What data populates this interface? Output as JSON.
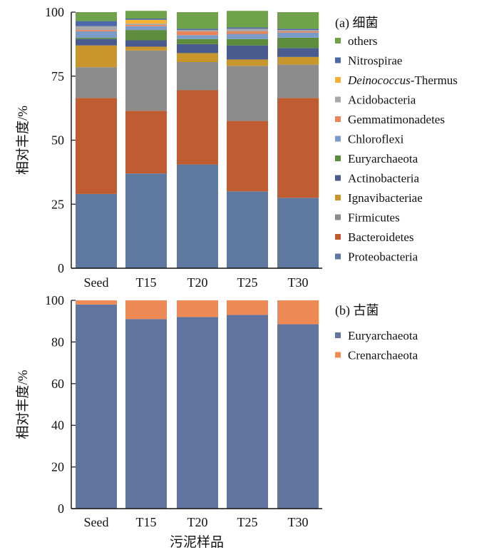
{
  "chart_data": [
    {
      "type": "stacked-bar",
      "title": "(a) 细菌",
      "xlabel": "",
      "ylabel": "相对丰度/%",
      "ylim": [
        0,
        100
      ],
      "yticks": [
        0,
        25,
        50,
        75,
        100
      ],
      "categories": [
        "Seed",
        "T15",
        "T20",
        "T25",
        "T30"
      ],
      "series": [
        {
          "name": "Proteobacteria",
          "color": "#5e789f",
          "values": [
            29.0,
            37.0,
            40.5,
            30.0,
            27.5
          ]
        },
        {
          "name": "Bacteroidetes",
          "color": "#bf5c31",
          "values": [
            37.5,
            24.5,
            29.0,
            27.5,
            39.0
          ]
        },
        {
          "name": "Firmicutes",
          "color": "#8c8c8c",
          "values": [
            12.0,
            23.5,
            11.0,
            21.5,
            13.0
          ]
        },
        {
          "name": "Ignavibacteriae",
          "color": "#c9962e",
          "values": [
            8.5,
            1.5,
            3.5,
            2.5,
            3.0
          ]
        },
        {
          "name": "Actinobacteria",
          "color": "#4a5b8f",
          "values": [
            2.5,
            2.5,
            3.5,
            5.5,
            3.5
          ]
        },
        {
          "name": "Euryarchaeota",
          "color": "#5d8c3d",
          "values": [
            0.5,
            4.0,
            2.0,
            2.5,
            4.0
          ]
        },
        {
          "name": "Chloroflexi",
          "color": "#7b9cc8",
          "values": [
            2.5,
            1.5,
            1.5,
            2.0,
            2.0
          ]
        },
        {
          "name": "Gemmatimonadetes",
          "color": "#e8855a",
          "values": [
            0.5,
            0.5,
            1.5,
            1.0,
            0.5
          ]
        },
        {
          "name": "Acidobacteria",
          "color": "#a8a8a8",
          "values": [
            1.5,
            0.5,
            0.5,
            1.0,
            0.5
          ]
        },
        {
          "name": "Deinococcus-Thermus",
          "color": "#f2b233",
          "values": [
            0.0,
            1.5,
            0.0,
            0.0,
            0.0
          ]
        },
        {
          "name": "Nitrospirae",
          "color": "#4d68a8",
          "values": [
            2.0,
            0.5,
            0.5,
            0.5,
            0.5
          ]
        },
        {
          "name": "others",
          "color": "#6fa24a",
          "values": [
            3.5,
            3.0,
            6.5,
            6.5,
            6.5
          ]
        }
      ],
      "legend_title": "(a) 细菌",
      "legend_order": [
        "others",
        "Nitrospirae",
        "Deinococcus-Thermus",
        "Acidobacteria",
        "Gemmatimonadetes",
        "Chloroflexi",
        "Euryarchaeota",
        "Actinobacteria",
        "Ignavibacteriae",
        "Firmicutes",
        "Bacteroidetes",
        "Proteobacteria"
      ],
      "legend_italic_part": {
        "Deinococcus-Thermus": [
          "Deinococcus",
          "-Thermus"
        ]
      }
    },
    {
      "type": "stacked-bar",
      "title": "(b) 古菌",
      "xlabel": "污泥样品",
      "ylabel": "相对丰度/%",
      "ylim": [
        0,
        100
      ],
      "yticks": [
        0,
        20,
        40,
        60,
        80,
        100
      ],
      "categories": [
        "Seed",
        "T15",
        "T20",
        "T25",
        "T30"
      ],
      "series": [
        {
          "name": "Euryarchaeota",
          "color": "#61749f",
          "values": [
            98.0,
            91.0,
            92.0,
            93.0,
            88.5
          ]
        },
        {
          "name": "Crenarchaeota",
          "color": "#ee8a55",
          "values": [
            2.0,
            9.0,
            8.0,
            7.0,
            11.5
          ]
        }
      ],
      "legend_title": "(b) 古菌",
      "legend_order": [
        "Euryarchaeota",
        "Crenarchaeota"
      ]
    }
  ]
}
